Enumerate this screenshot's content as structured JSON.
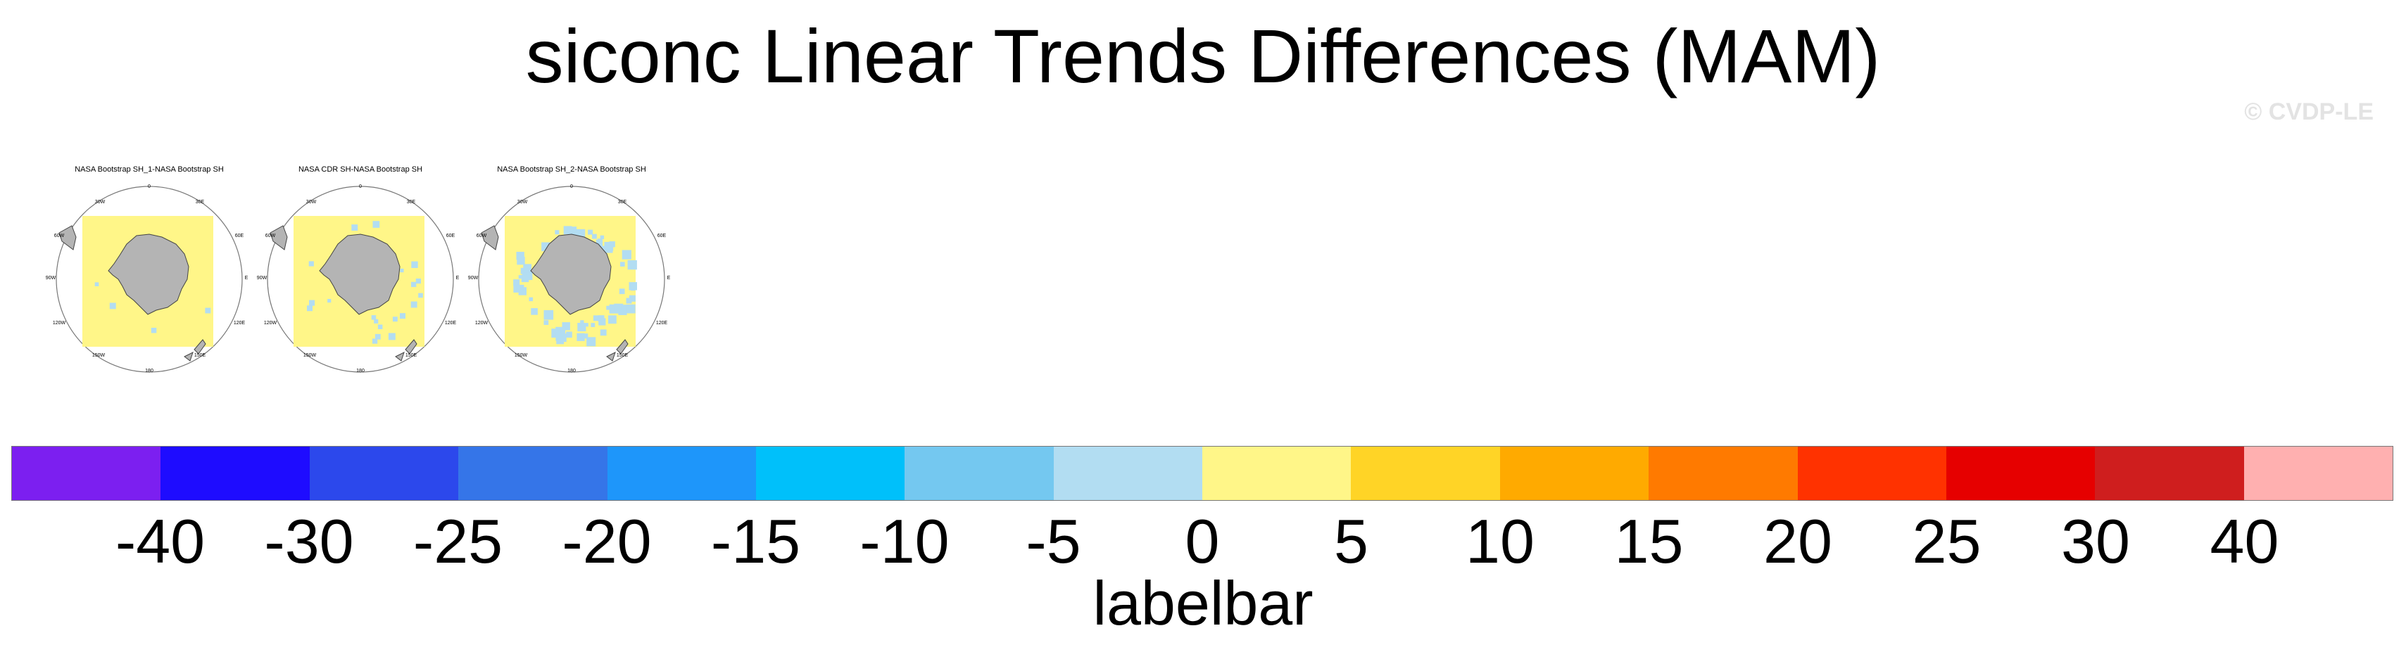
{
  "title": "siconc Linear Trends Differences (MAM)",
  "credit": "© CVDP-LE",
  "panels": [
    {
      "title": "NASA Bootstrap SH_1-NASA Bootstrap SH",
      "ice_loss_level": 0
    },
    {
      "title": "NASA CDR SH-NASA Bootstrap SH",
      "ice_loss_level": 1
    },
    {
      "title": "NASA Bootstrap SH_2-NASA Bootstrap SH",
      "ice_loss_level": 2
    }
  ],
  "map_labels": {
    "top": "0",
    "bottom": "180",
    "left": "90W",
    "right": "E",
    "upper_left": "30W",
    "upper_right": "30E",
    "left_upper": "60W",
    "right_upper": "60E",
    "left_lower": "120W",
    "right_lower": "120E",
    "lower_left": "150W",
    "lower_right": "150E"
  },
  "labelbar": {
    "title": "labelbar",
    "colors": [
      "#7c1ff0",
      "#1e0cff",
      "#2c48ec",
      "#3575e8",
      "#1e96fa",
      "#00c0fa",
      "#74c8f0",
      "#b2ddf2",
      "#fff688",
      "#ffd426",
      "#ffaa00",
      "#ff7a00",
      "#ff3200",
      "#e60000",
      "#cf1e1e",
      "#ffb0b0"
    ],
    "ticks": [
      "-40",
      "-30",
      "-25",
      "-20",
      "-15",
      "-10",
      "-5",
      "0",
      "5",
      "10",
      "15",
      "20",
      "25",
      "30",
      "40"
    ]
  }
}
